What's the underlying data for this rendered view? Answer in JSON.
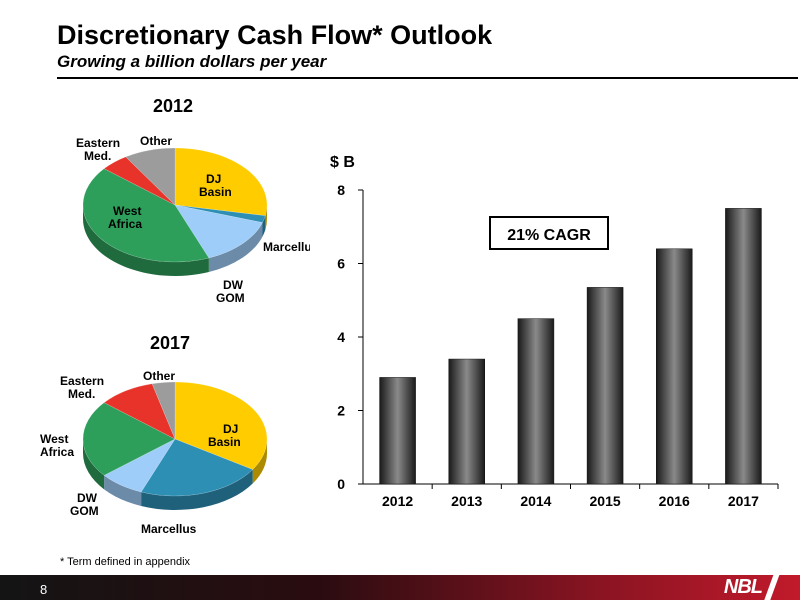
{
  "header": {
    "title": "Discretionary Cash Flow* Outlook",
    "subtitle": "Growing a billion dollars per year"
  },
  "pies": [
    {
      "year": "2012",
      "slices": [
        {
          "label": "DJ Basin",
          "value": 28,
          "color": "#FFCC00"
        },
        {
          "label": "Marcellus",
          "value": 2,
          "color": "#2E8FB5"
        },
        {
          "label": "DW GOM",
          "value": 14,
          "color": "#9DCDF8"
        },
        {
          "label": "West Africa",
          "value": 42,
          "color": "#2E9E5B"
        },
        {
          "label": "Eastern Med.",
          "value": 5,
          "color": "#E8332A"
        },
        {
          "label": "Other",
          "value": 9,
          "color": "#9C9C9C"
        }
      ]
    },
    {
      "year": "2017",
      "slices": [
        {
          "label": "DJ Basin",
          "value": 34,
          "color": "#FFCC00"
        },
        {
          "label": "Marcellus",
          "value": 22,
          "color": "#2E8FB5"
        },
        {
          "label": "DW GOM",
          "value": 8,
          "color": "#9DCDF8"
        },
        {
          "label": "West Africa",
          "value": 22,
          "color": "#2E9E5B"
        },
        {
          "label": "Eastern Med.",
          "value": 10,
          "color": "#E8332A"
        },
        {
          "label": "Other",
          "value": 4,
          "color": "#9C9C9C"
        }
      ]
    }
  ],
  "chart_data": {
    "type": "bar",
    "categories": [
      "2012",
      "2013",
      "2014",
      "2015",
      "2016",
      "2017"
    ],
    "values": [
      2.9,
      3.4,
      4.5,
      5.35,
      6.4,
      7.5
    ],
    "ylabel": "$ B",
    "ylim": [
      0,
      8
    ],
    "yticks": [
      "0",
      "2",
      "4",
      "6",
      "8"
    ],
    "annotation": "21% CAGR"
  },
  "footnote": "* Term defined in appendix",
  "page_number": "8",
  "logo_text": "NBL"
}
